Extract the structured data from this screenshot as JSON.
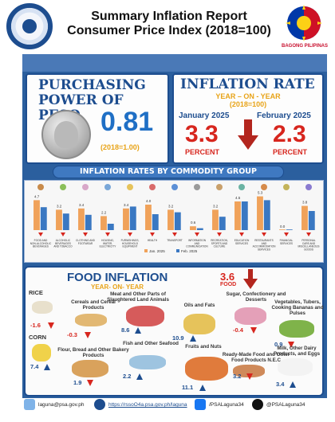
{
  "header": {
    "title_line1": "Summary Inflation Report",
    "title_line2": "Consumer Price Index (2018=100)",
    "logo_left": "psa-seal-logo",
    "logo_right": "bagong-pilipinas-logo",
    "logo_right_text": "BAGONG PILIPINAS"
  },
  "purchasing_power": {
    "title_line1": "PURCHASING",
    "title_line2": "POWER OF PESO",
    "value": "0.81",
    "base": "(2018=1.00)",
    "icon": "peso-coin-icon"
  },
  "inflation_rate": {
    "title": "INFLATION RATE",
    "subtitle_line1": "YEAR – ON - YEAR",
    "subtitle_line2": "(2018=100)",
    "month1": "January 2025",
    "value1": "3.3",
    "unit1": "PERCENT",
    "month2": "February 2025",
    "value2": "2.3",
    "unit2": "PERCENT",
    "trend_icon": "down-arrow-icon",
    "colors": {
      "value": "#d7261e",
      "title": "#1d4d8f",
      "accent": "#e8a317"
    }
  },
  "commodity_section": {
    "title": "INFLATION RATES BY COMMODITY GROUP"
  },
  "chart_data": {
    "type": "bar",
    "title": "INFLATION RATES BY COMMODITY GROUP",
    "categories": [
      "FOOD AND NON-ALCOHOLIC BEVERAGES",
      "ALCOHOLIC BEVERAGES AND TOBACCO",
      "CLOTHING AND FOOTWEAR",
      "HOUSING, WATER, ELECTRICITY",
      "FURNISHINGS, HOUSEHOLD EQUIPMENT",
      "HEALTH",
      "TRANSPORT",
      "INFORMATION AND COMMUNICATION",
      "RECREATION, SPORTS AND CULTURE",
      "EDUCATION SERVICES",
      "RESTAURANTS AND ACCOMMODATION SERVICES",
      "FINANCIAL SERVICES",
      "PERSONAL CARE AND MISCELLANEOUS GOODS"
    ],
    "series": [
      {
        "name": "Jan. 2025",
        "values": [
          4.7,
          3.2,
          3.4,
          2.2,
          3.4,
          4.0,
          3.2,
          0.6,
          3.2,
          4.5,
          5.3,
          0.0,
          3.8
        ]
      },
      {
        "name": "Feb. 2025",
        "values": [
          3.6,
          2.6,
          2.4,
          1.0,
          3.7,
          2.5,
          2.8,
          0.3,
          2.1,
          4.5,
          4.7,
          0.0,
          3.0
        ]
      }
    ],
    "value_labels": [
      "4.7",
      "3.2",
      "3.4",
      "2.2",
      "3.4",
      "4.0",
      "3.2",
      "0.6",
      "3.2",
      "4.5",
      "5.3",
      "0.0",
      "3.8"
    ],
    "legend": "bottom-center",
    "ylim": [
      0,
      6
    ],
    "grid": false,
    "colors": [
      "#f0a25a",
      "#3a78c2"
    ]
  },
  "food_inflation": {
    "title": "FOOD INFLATION",
    "subtitle": "YEAR- ON- YEAR",
    "headline_value": "3.6",
    "headline_unit": "FOOD",
    "items": [
      {
        "label": "RICE",
        "value": "-1.6",
        "trend": "down"
      },
      {
        "label": "CORN",
        "value": "7.4",
        "trend": "up"
      },
      {
        "label": "Cereals and Cereal Products",
        "value": "-0.3",
        "trend": "down"
      },
      {
        "label": "Flour, Bread and Other Bakery Products",
        "value": "1.9",
        "trend": "down"
      },
      {
        "label": "Meat and Other Parts of Slaughtered Land Animals",
        "value": "8.6",
        "trend": "up"
      },
      {
        "label": "Fish and Other Seafood",
        "value": "2.2",
        "trend": "up"
      },
      {
        "label": "Oils and Fats",
        "value": "10.9",
        "trend": "up"
      },
      {
        "label": "Fruits and Nuts",
        "value": "11.1",
        "trend": "up"
      },
      {
        "label": "Sugar, Confectionery and Desserts",
        "value": "-0.4",
        "trend": "down"
      },
      {
        "label": "Ready-Made Food and Other Food Products N.E.C",
        "value": "3.2",
        "trend": "down"
      },
      {
        "label": "Vegetables, Tubers, Cooking Bananas and Pulses",
        "value": "0.9",
        "trend": "down"
      },
      {
        "label": "Milk, Other Dairy Products, and Eggs",
        "value": "3.4",
        "trend": "up"
      }
    ]
  },
  "footer": {
    "email": "laguna@psa.gov.ph",
    "website": "https://rssoO4a.psa.gov.ph/laguna",
    "facebook": "/PSALaguna34",
    "x_handle": "@PSALaguna34",
    "icons": [
      "email-icon",
      "globe-icon",
      "facebook-icon",
      "x-icon"
    ]
  }
}
